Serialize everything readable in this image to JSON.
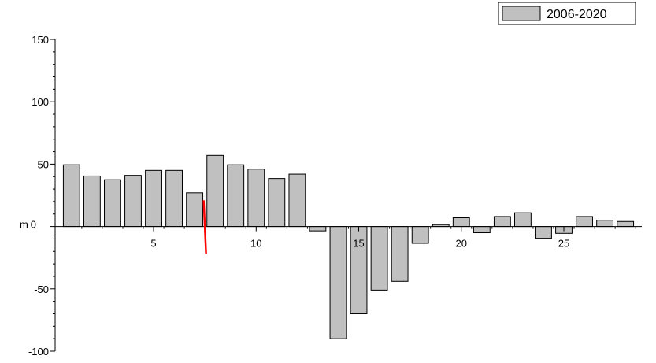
{
  "chart_data": {
    "type": "bar",
    "series": [
      {
        "name": "2006-2020",
        "color": "#c0c0c0",
        "x": [
          1,
          2,
          3,
          4,
          5,
          6,
          7,
          8,
          9,
          10,
          11,
          12,
          13,
          14,
          15,
          16,
          17,
          18,
          19,
          20,
          21,
          22,
          23,
          24,
          25,
          26,
          27,
          28
        ],
        "values": [
          49.5,
          40.5,
          37.5,
          41,
          45,
          45,
          27,
          57,
          49.5,
          46,
          38.5,
          42,
          -3.5,
          -90,
          -70,
          -51,
          -44,
          -13.5,
          1.5,
          7,
          -5,
          8,
          11,
          -9.5,
          -5.5,
          8,
          5,
          4
        ]
      }
    ],
    "ylabel": "m",
    "xlim": [
      0.2,
      28.8
    ],
    "ylim": [
      -100,
      150
    ],
    "x_ticks": [
      5,
      10,
      15,
      20,
      25
    ],
    "y_ticks": [
      150,
      100,
      50,
      0,
      -50,
      -100
    ],
    "x_tick_labels": [
      "5",
      "10",
      "15",
      "20",
      "25"
    ],
    "y_tick_labels": [
      "150",
      "100",
      "50",
      "0",
      "-50",
      "-100"
    ],
    "grid": false,
    "legend_position": "top-right",
    "annotations": [
      {
        "type": "vertical-line",
        "x": 7.5,
        "y_from": -22,
        "y_to": 21,
        "color": "#ff0000"
      }
    ],
    "axis_color": "#000000",
    "bar_edge_color": "#000000"
  }
}
